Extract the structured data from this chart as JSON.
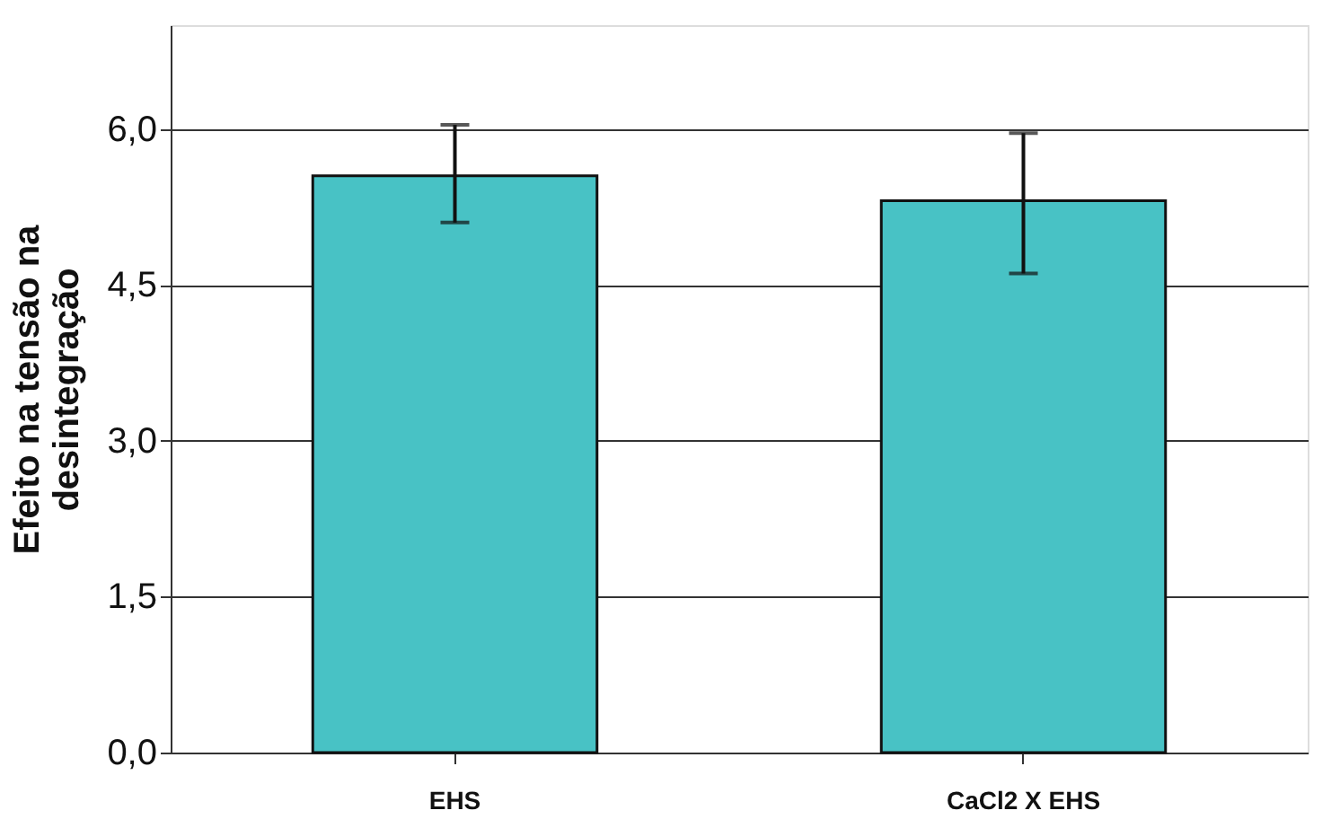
{
  "chart_data": {
    "type": "bar",
    "ylabel": "Efeito na tensão na\ndesintegração",
    "categories": [
      "EHS",
      "CaCl2 X EHS"
    ],
    "values": [
      5.55,
      5.31
    ],
    "color": "#48c2c5",
    "errors": [
      [
        5.1,
        6.04
      ],
      [
        4.61,
        5.96
      ]
    ],
    "ylim": [
      0,
      7.0
    ],
    "yticks": [
      {
        "value": 0,
        "label": "0,0"
      },
      {
        "value": 1.5,
        "label": "1,5"
      },
      {
        "value": 3,
        "label": "3,0"
      },
      {
        "value": 4.5,
        "label": "4,5"
      },
      {
        "value": 6,
        "label": "6,0"
      }
    ],
    "grid": "y"
  }
}
